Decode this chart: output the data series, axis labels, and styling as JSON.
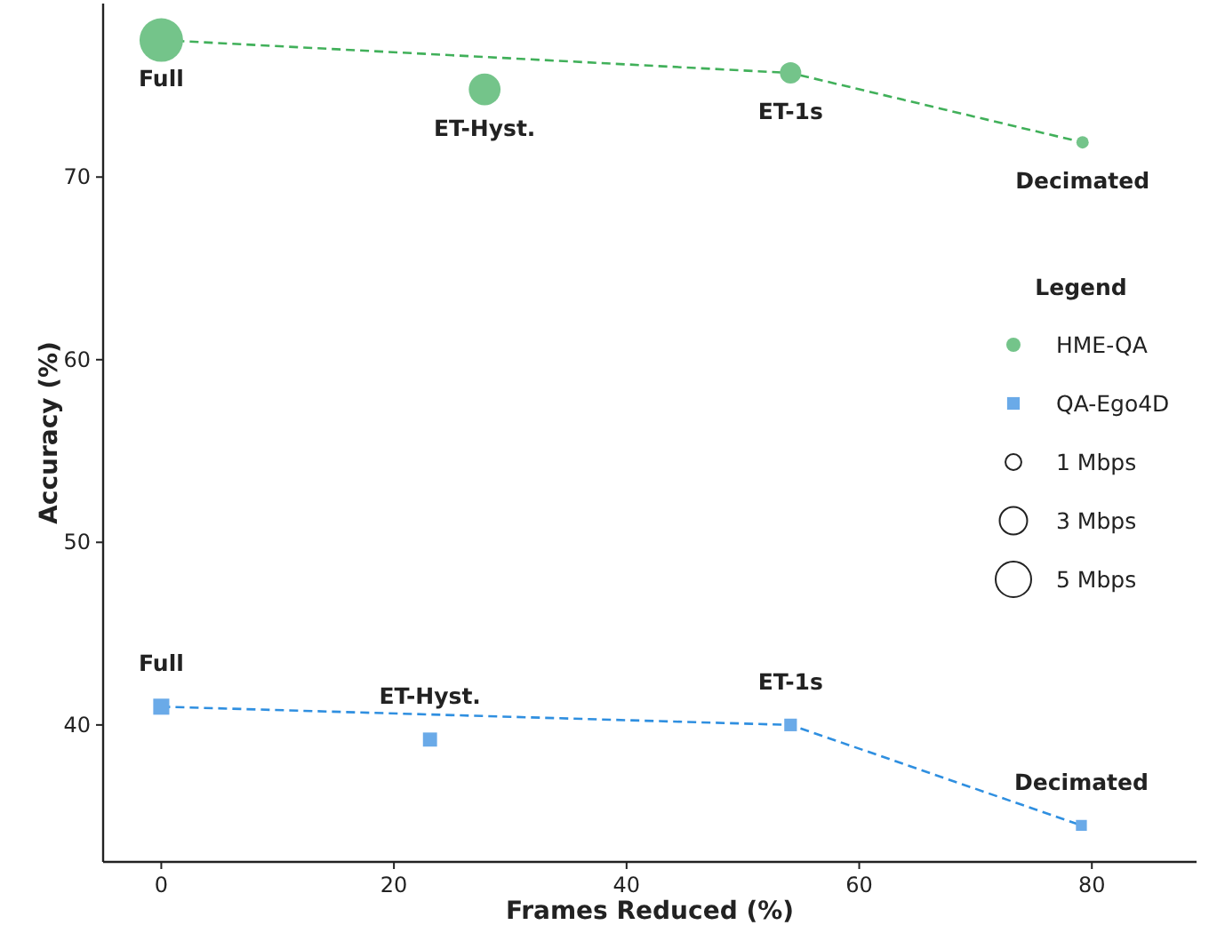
{
  "chart_data": {
    "type": "bubble",
    "xlabel": "Frames Reduced (%)",
    "ylabel": "Accuracy (%)",
    "xlim": [
      -5,
      89
    ],
    "ylim": [
      32.5,
      79.5
    ],
    "xticks": [
      0,
      20,
      40,
      60,
      80
    ],
    "yticks": [
      40,
      50,
      60,
      70
    ],
    "grid": false,
    "legend": "right",
    "legend_title": "Legend",
    "size_legend": [
      {
        "value": 1,
        "label": "1 Mbps"
      },
      {
        "value": 3,
        "label": "3 Mbps"
      },
      {
        "value": 5,
        "label": "5 Mbps"
      }
    ],
    "series": [
      {
        "type": "line",
        "color": "#41b05a",
        "line_style": "dashed",
        "marker": "none",
        "x": [
          0,
          54.1,
          79.2
        ],
        "values": [
          77.5,
          75.7,
          71.9
        ]
      },
      {
        "type": "line",
        "color": "#2f8fe0",
        "line_style": "dashed",
        "marker": "none",
        "x": [
          0,
          54.1,
          79.1
        ],
        "values": [
          41.0,
          40.0,
          34.5
        ]
      },
      {
        "type": "bubble",
        "name": "HME-QA",
        "color": "#74c48a",
        "marker": "circle",
        "x": [
          0,
          27.8,
          54.1,
          79.2
        ],
        "values": [
          77.5,
          74.8,
          75.7,
          71.9
        ],
        "sizes": [
          7.5,
          4,
          1.8,
          0.6
        ]
      },
      {
        "type": "bubble",
        "name": "QA-Ego4D",
        "color": "#6aaae8",
        "marker": "square",
        "x": [
          0,
          23.1,
          54.1,
          79.1
        ],
        "values": [
          41.0,
          39.2,
          40.0,
          34.5
        ],
        "sizes": [
          1.3,
          1.0,
          0.8,
          0.6
        ]
      }
    ],
    "annotations": [
      {
        "text": "Full",
        "x": 0,
        "y": 77.5
      },
      {
        "text": "ET-Hyst.",
        "x": 27.8,
        "y": 74.8
      },
      {
        "text": "ET-1s",
        "x": 54.1,
        "y": 75.7
      },
      {
        "text": "Decimated",
        "x": 79.2,
        "y": 71.9
      },
      {
        "text": "Full",
        "x": 0,
        "y": 41.0
      },
      {
        "text": "ET-Hyst.",
        "x": 23.1,
        "y": 39.2
      },
      {
        "text": "ET-1s",
        "x": 54.1,
        "y": 40.0
      },
      {
        "text": "Decimated",
        "x": 79.1,
        "y": 34.5
      }
    ]
  }
}
